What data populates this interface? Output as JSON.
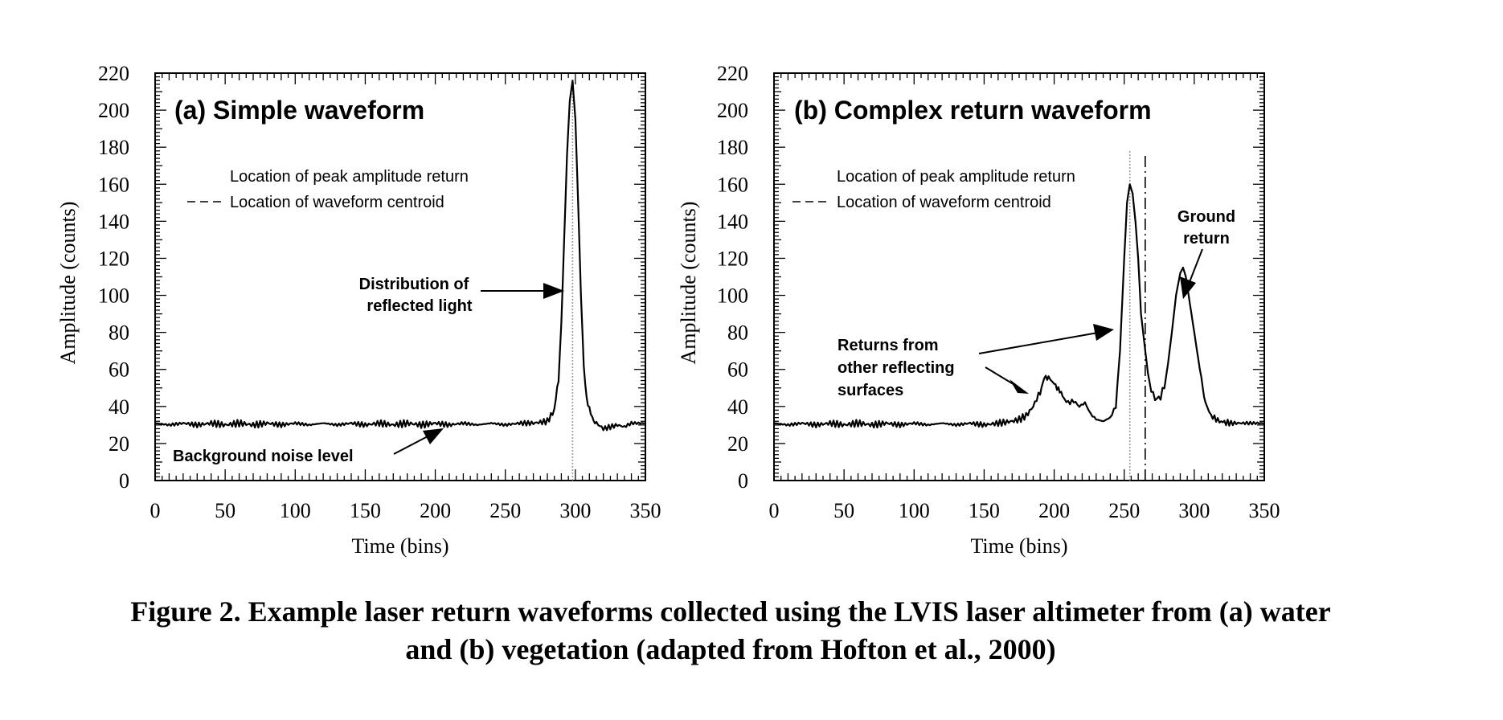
{
  "caption": {
    "line1": "Figure 2. Example laser return waveforms collected using the LVIS laser altimeter from (a) water",
    "line2": "and (b) vegetation (adapted from Hofton et al., 2000)"
  },
  "chart_data": [
    {
      "type": "line",
      "title": "(a) Simple waveform",
      "xlabel": "Time (bins)",
      "ylabel": "Amplitude (counts)",
      "xlim": [
        0,
        350
      ],
      "ylim": [
        0,
        220
      ],
      "x_ticks": [
        0,
        50,
        100,
        150,
        200,
        250,
        300,
        350
      ],
      "y_ticks": [
        0,
        20,
        40,
        60,
        80,
        100,
        120,
        140,
        160,
        180,
        200,
        220
      ],
      "grid": false,
      "legend": [
        {
          "label": "Location of peak amplitude return",
          "style": "dotted"
        },
        {
          "label": "Location of waveform centroid",
          "style": "dashed"
        }
      ],
      "peak_location": 298,
      "centroid_location": 298,
      "series": [
        {
          "x": [
            0,
            10,
            20,
            30,
            40,
            50,
            60,
            70,
            80,
            90,
            100,
            110,
            120,
            130,
            140,
            150,
            160,
            170,
            180,
            190,
            200,
            210,
            220,
            230,
            240,
            250,
            260,
            270,
            280,
            285,
            288,
            290,
            292,
            294,
            296,
            298,
            300,
            302,
            304,
            306,
            308,
            310,
            312,
            315,
            320,
            325,
            330,
            335,
            340,
            345,
            350
          ],
          "y": [
            31,
            30,
            31,
            30,
            31,
            30,
            31,
            30,
            31,
            30,
            31,
            30,
            31,
            30,
            31,
            30,
            31,
            30,
            31,
            30,
            31,
            30,
            31,
            30,
            31,
            30,
            31,
            31,
            32,
            38,
            55,
            85,
            130,
            175,
            205,
            216,
            195,
            150,
            100,
            62,
            45,
            38,
            34,
            31,
            28,
            29,
            30,
            29,
            31,
            31,
            31
          ]
        }
      ],
      "annotations": [
        {
          "lines": [
            "Distribution of",
            "reflected light"
          ]
        },
        {
          "lines": [
            "Background noise level"
          ]
        }
      ]
    },
    {
      "type": "line",
      "title": "(b) Complex return waveform",
      "xlabel": "Time (bins)",
      "ylabel": "Amplitude (counts)",
      "xlim": [
        0,
        350
      ],
      "ylim": [
        0,
        220
      ],
      "x_ticks": [
        0,
        50,
        100,
        150,
        200,
        250,
        300,
        350
      ],
      "y_ticks": [
        0,
        20,
        40,
        60,
        80,
        100,
        120,
        140,
        160,
        180,
        200,
        220
      ],
      "grid": false,
      "legend": [
        {
          "label": "Location of peak amplitude return",
          "style": "dotted"
        },
        {
          "label": "Location of waveform centroid",
          "style": "dashed"
        }
      ],
      "peak_location": 254,
      "centroid_location": 265,
      "series": [
        {
          "x": [
            0,
            10,
            20,
            30,
            40,
            50,
            60,
            70,
            80,
            90,
            100,
            110,
            120,
            130,
            140,
            150,
            160,
            170,
            175,
            180,
            185,
            190,
            193,
            196,
            200,
            203,
            206,
            210,
            214,
            218,
            222,
            226,
            230,
            235,
            240,
            244,
            247,
            250,
            252,
            254,
            256,
            258,
            260,
            262,
            265,
            268,
            272,
            276,
            280,
            284,
            287,
            290,
            292,
            294,
            296,
            298,
            300,
            302,
            305,
            308,
            312,
            318,
            325,
            335,
            345,
            350
          ],
          "y": [
            31,
            30,
            31,
            30,
            31,
            30,
            31,
            30,
            31,
            30,
            31,
            30,
            31,
            30,
            31,
            30,
            31,
            32,
            33,
            35,
            40,
            48,
            55,
            56,
            52,
            50,
            45,
            42,
            43,
            40,
            42,
            36,
            33,
            32,
            34,
            40,
            70,
            120,
            150,
            160,
            155,
            140,
            120,
            90,
            70,
            52,
            44,
            45,
            55,
            80,
            100,
            112,
            115,
            110,
            100,
            90,
            80,
            70,
            55,
            42,
            35,
            32,
            31,
            31,
            31,
            31
          ]
        }
      ],
      "annotations": [
        {
          "lines": [
            "Ground",
            "return"
          ]
        },
        {
          "lines": [
            "Returns from",
            "other reflecting",
            "surfaces"
          ]
        }
      ]
    }
  ]
}
